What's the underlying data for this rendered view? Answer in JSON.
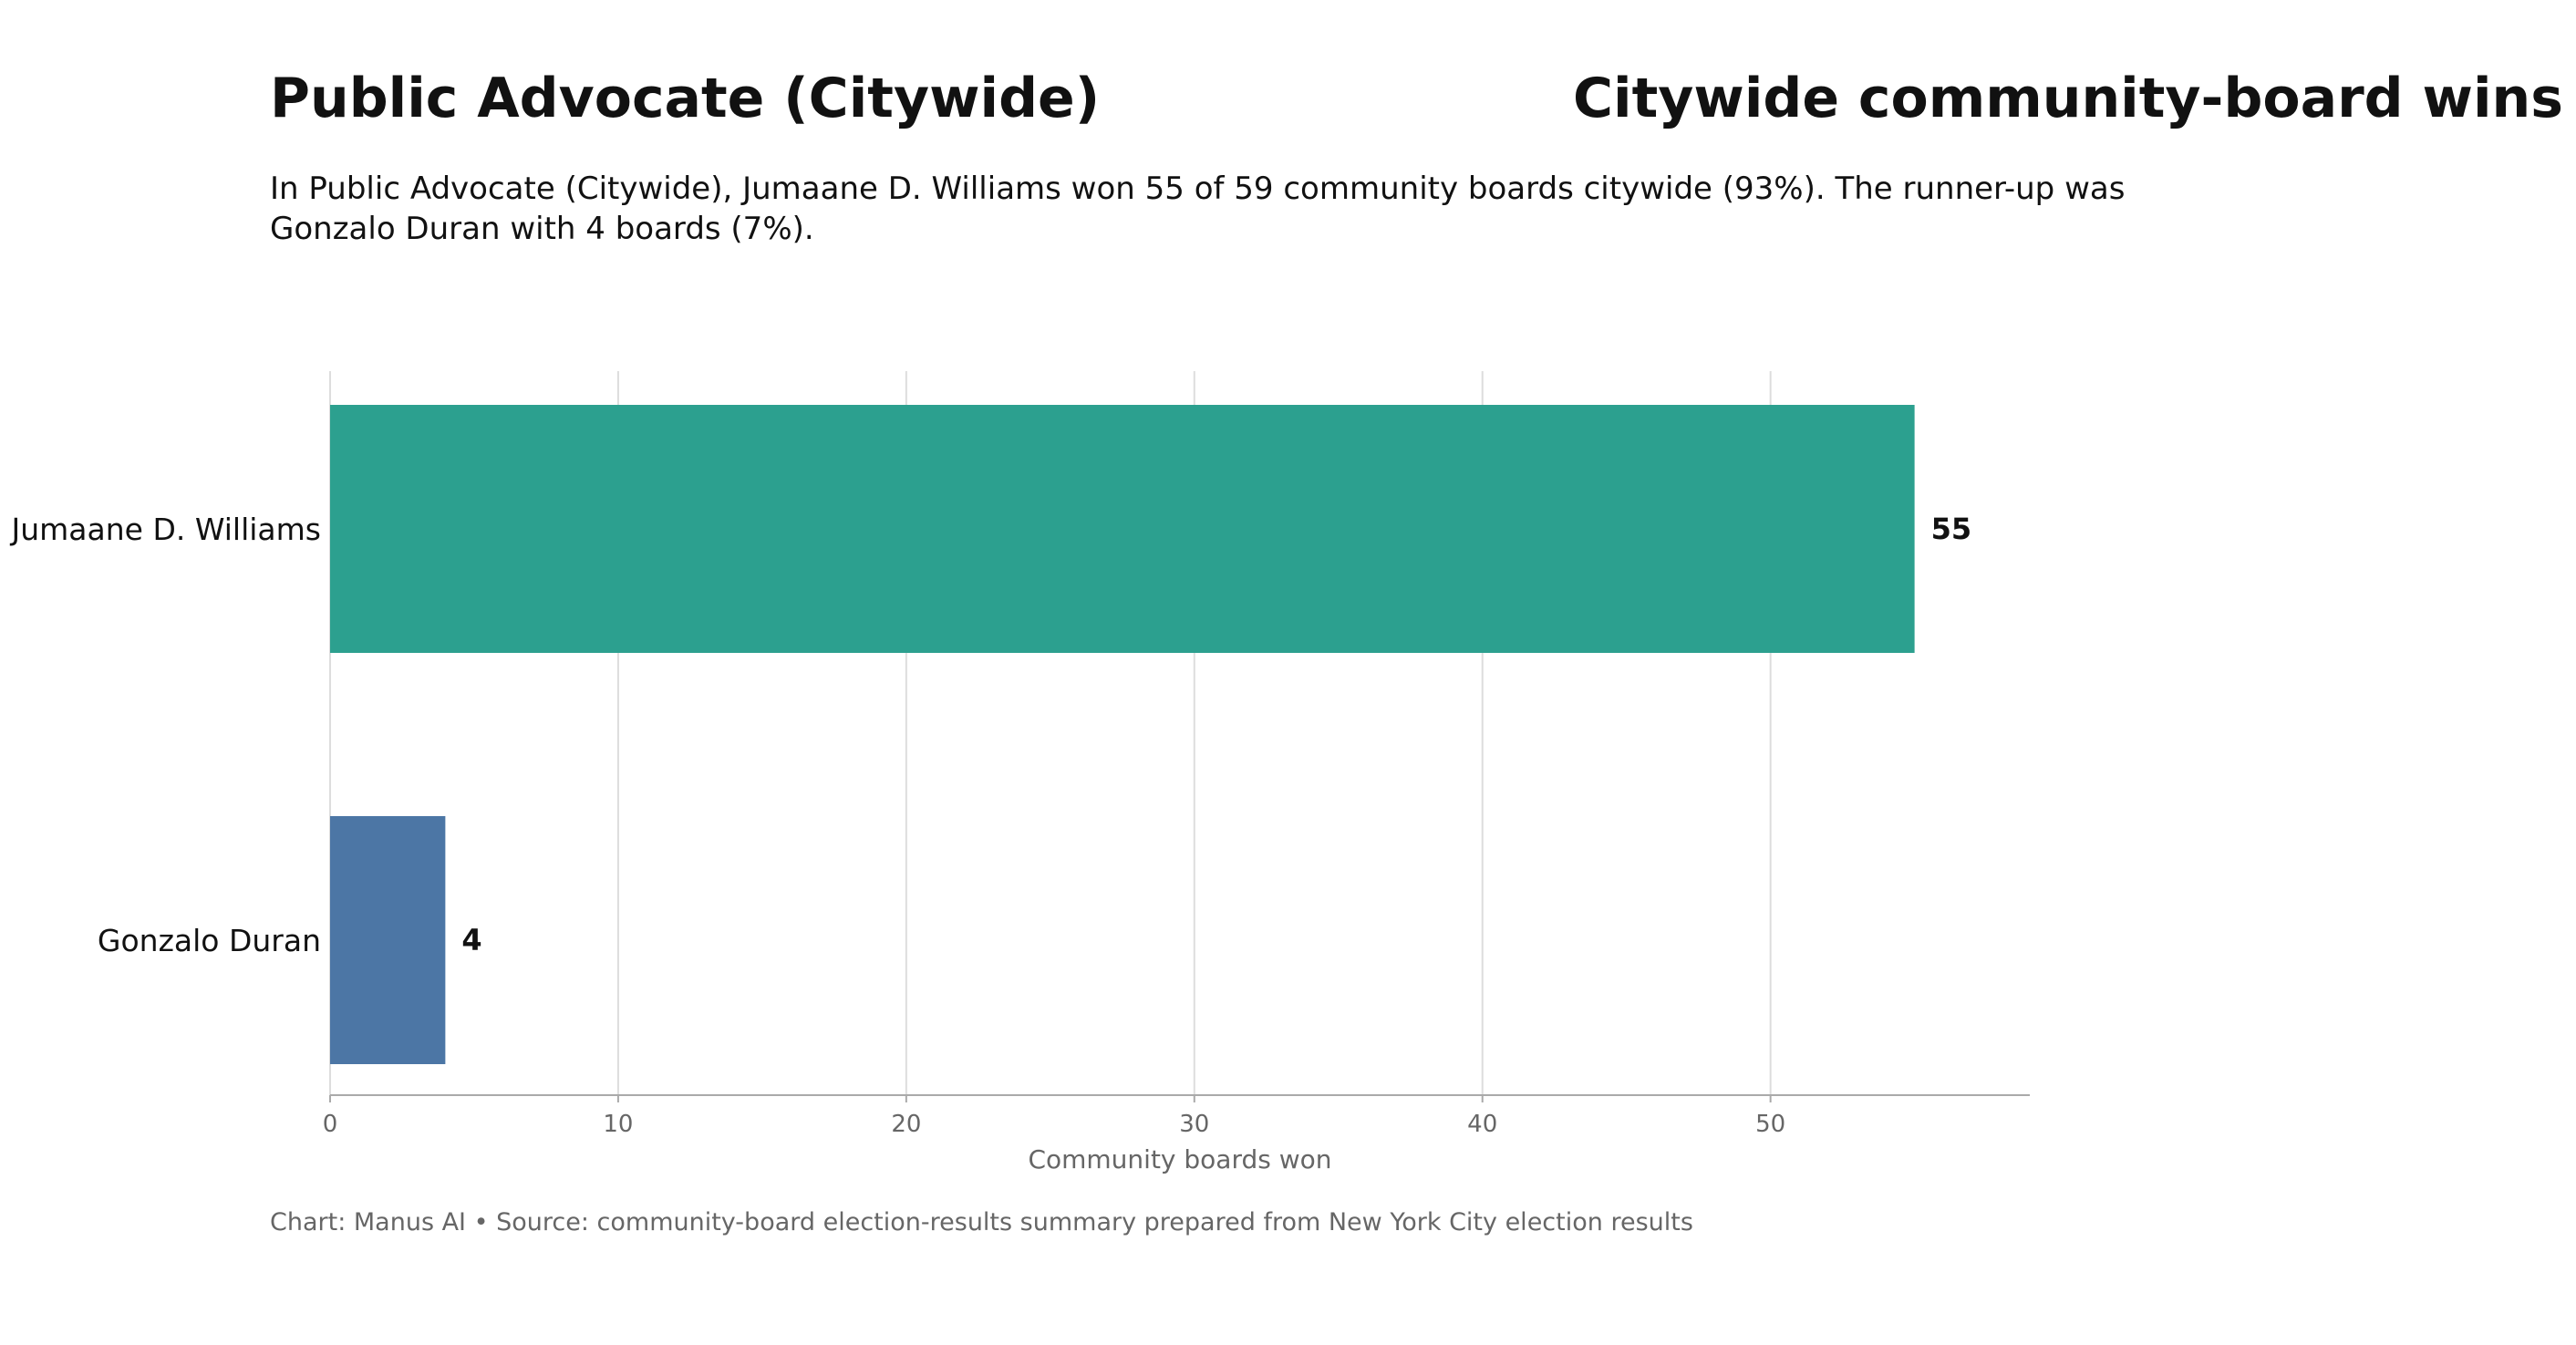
{
  "header": {
    "title_left": "Public Advocate (Citywide)",
    "title_right": "Citywide community-board wins",
    "subtitle": "In Public Advocate (Citywide), Jumaane D. Williams won 55 of 59 community boards citywide (93%). The runner-up was Gonzalo Duran with 4 boards (7%)."
  },
  "footer": {
    "source": "Chart: Manus AI • Source: community-board election-results summary prepared from New York City election results"
  },
  "chart_data": {
    "type": "bar",
    "orientation": "horizontal",
    "categories": [
      "Jumaane D. Williams",
      "Gonzalo Duran"
    ],
    "values": [
      55,
      4
    ],
    "colors": [
      "#2ca08f",
      "#4c76a5"
    ],
    "title": "Public Advocate (Citywide)",
    "xlabel": "Community boards won",
    "ylabel": "",
    "xlim": [
      0,
      59
    ],
    "xticks": [
      0,
      10,
      20,
      30,
      40,
      50
    ],
    "grid": "vertical",
    "data_labels": [
      "55",
      "4"
    ]
  },
  "colors": {
    "grid": "#dddddd",
    "axis": "#aaaaaa",
    "tick_text": "#666666",
    "text": "#111111"
  }
}
